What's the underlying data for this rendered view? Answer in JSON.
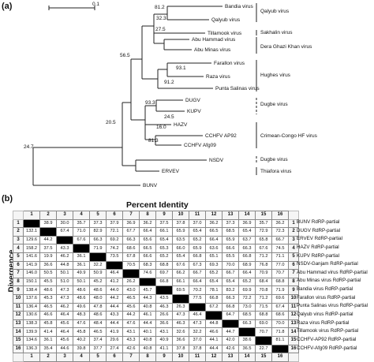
{
  "panel_a_label": "(a)",
  "panel_b_label": "(b)",
  "scale_bar_label": "0.1",
  "tree": {
    "taxa": {
      "bandia": "Bandia virus",
      "qalyub": "Qalyub virus",
      "tillamook": "Tillamook virus",
      "abu_hammad": "Abu Hammad virus",
      "abu_mina": "Abu Minas virus",
      "farallon": "Farallon virus",
      "raza": "Raza virus",
      "punta_salinas": "Punta Salinas virus",
      "dugv": "DUGV",
      "kupv": "KUPV",
      "hazv": "HAZV",
      "cchfv_ap92": "CCHFV AP92",
      "cchfv_afg09": "CCHFV Afg09",
      "nsdv": "NSDV",
      "erve": "ERVEV",
      "bunv": "BUNV"
    },
    "bootstrap": {
      "b1": "81.2",
      "b2": "32.3",
      "b3": "27.5",
      "b4": "56.5",
      "b5": "93.1",
      "b6": "91.2",
      "b7": "93.3",
      "b8": "24.5",
      "b9": "16.0",
      "b10": "81.3",
      "b11": "20.5",
      "b12": "24.7"
    },
    "groups": {
      "qalyub": "Qalyub virus",
      "sakhalin": "Sakhalin virus",
      "dera": "Dera Ghazi Khan virus",
      "hughes": "Hughes virus",
      "dugbe1": "Dugbe virus",
      "cchf": "Crimean-Congo HF virus",
      "dugbe2": "Dugbe virus",
      "thiafora": "Thiafora virus"
    }
  },
  "matrix": {
    "title": "Percent Identity",
    "side_label": "Divergence",
    "col_headers": [
      "1",
      "2",
      "3",
      "4",
      "5",
      "6",
      "7",
      "8",
      "9",
      "10",
      "11",
      "12",
      "13",
      "14",
      "15",
      "16"
    ],
    "rows": [
      [
        "",
        "38.9",
        "30.0",
        "35.7",
        "37.3",
        "37.9",
        "36.9",
        "36.2",
        "37.5",
        "37.8",
        "37.0",
        "36.2",
        "37.3",
        "36.9",
        "35.7",
        "36.2"
      ],
      [
        "132.1",
        "",
        "67.4",
        "71.0",
        "82.9",
        "72.1",
        "67.7",
        "66.4",
        "66.1",
        "65.9",
        "65.4",
        "66.5",
        "68.5",
        "65.4",
        "72.9",
        "72.3"
      ],
      [
        "129.6",
        "44.2",
        "",
        "67.6",
        "66.3",
        "69.2",
        "66.3",
        "65.6",
        "65.4",
        "63.5",
        "65.2",
        "66.4",
        "65.9",
        "63.7",
        "65.8",
        "66.7"
      ],
      [
        "158.2",
        "37.5",
        "43.3",
        "",
        "71.9",
        "74.2",
        "68.6",
        "66.5",
        "65.3",
        "66.0",
        "65.9",
        "63.6",
        "66.6",
        "66.3",
        "67.6",
        "74.5"
      ],
      [
        "141.6",
        "19.9",
        "46.2",
        "36.1",
        "",
        "73.5",
        "67.8",
        "66.6",
        "65.2",
        "65.4",
        "66.8",
        "65.1",
        "65.5",
        "66.8",
        "71.2",
        "71.1"
      ],
      [
        "141.9",
        "36.6",
        "44.8",
        "36.1",
        "32.2",
        "",
        "70.5",
        "68.3",
        "68.8",
        "67.6",
        "67.3",
        "69.3",
        "70.0",
        "68.9",
        "76.8",
        "77.0"
      ],
      [
        "146.0",
        "50.5",
        "50.1",
        "49.9",
        "50.9",
        "46.4",
        "",
        "74.6",
        "69.7",
        "66.2",
        "66.7",
        "65.2",
        "66.7",
        "66.4",
        "70.9",
        "70.7"
      ],
      [
        "150.1",
        "45.5",
        "51.0",
        "50.1",
        "45.2",
        "41.2",
        "26.2",
        "",
        "66.8",
        "66.1",
        "66.4",
        "65.4",
        "65.4",
        "65.2",
        "68.4",
        "68.8"
      ],
      [
        "138.4",
        "48.6",
        "47.3",
        "48.6",
        "48.6",
        "44.0",
        "43.0",
        "45.7",
        "",
        "69.5",
        "70.2",
        "78.1",
        "83.2",
        "69.9",
        "70.8",
        "71.9"
      ],
      [
        "137.6",
        "45.3",
        "47.3",
        "48.6",
        "48.0",
        "44.2",
        "46.5",
        "44.3",
        "43.5",
        "",
        "77.5",
        "66.8",
        "66.3",
        "72.2",
        "71.2",
        "69.6"
      ],
      [
        "136.4",
        "46.5",
        "46.2",
        "49.6",
        "47.8",
        "44.4",
        "45.6",
        "40.8",
        "46.3",
        "26.3",
        "",
        "67.2",
        "66.8",
        "73.0",
        "71.5",
        "67.4"
      ],
      [
        "130.6",
        "46.6",
        "46.4",
        "48.3",
        "48.6",
        "43.3",
        "44.2",
        "46.1",
        "26.6",
        "47.3",
        "46.4",
        "",
        "64.7",
        "68.5",
        "68.8",
        "68.6"
      ],
      [
        "138.3",
        "45.8",
        "45.6",
        "47.6",
        "48.4",
        "44.4",
        "47.6",
        "44.4",
        "36.6",
        "46.3",
        "47.3",
        "44.8",
        "",
        "66.3",
        "69.0",
        "70.0"
      ],
      [
        "139.9",
        "41.4",
        "46.4",
        "45.8",
        "46.5",
        "41.9",
        "43.1",
        "40.1",
        "43.1",
        "32.6",
        "32.2",
        "46.6",
        "44.7",
        "",
        "70.7",
        "71.8"
      ],
      [
        "134.6",
        "36.1",
        "45.6",
        "40.2",
        "37.4",
        "29.6",
        "43.3",
        "40.8",
        "40.9",
        "36.6",
        "37.0",
        "44.1",
        "42.0",
        "38.6",
        "",
        "81.1"
      ],
      [
        "136.3",
        "35.4",
        "44.6",
        "39.8",
        "37.7",
        "27.4",
        "42.6",
        "40.8",
        "41.1",
        "37.8",
        "37.8",
        "44.4",
        "42.6",
        "36.5",
        "22.7",
        ""
      ]
    ],
    "sequence_names": [
      "BUNV RdRP-partial",
      "DUGV RdRP-partial",
      "ERVEV RdRP-partial",
      "HAZV RdRP-partial",
      "KUPV RdRP-partial",
      "NSDV-Ganjam RdRP-partial",
      "Abu Hammad virus RdRP-partial",
      "Abu Minas virus RdRP-partial",
      "Bandia virus RdRP-partial",
      "Farallon virus RdRP-partial",
      "Punta Salinas virus RdRP-partial",
      "Qalyub virus RdRP-partial",
      "Raza virus RdRP-partial",
      "Tillamook virus RdRP-partial",
      "CCHFV-AP92 RdRP-partial",
      "CCHFV-Afg09 RdRP-partial"
    ]
  }
}
